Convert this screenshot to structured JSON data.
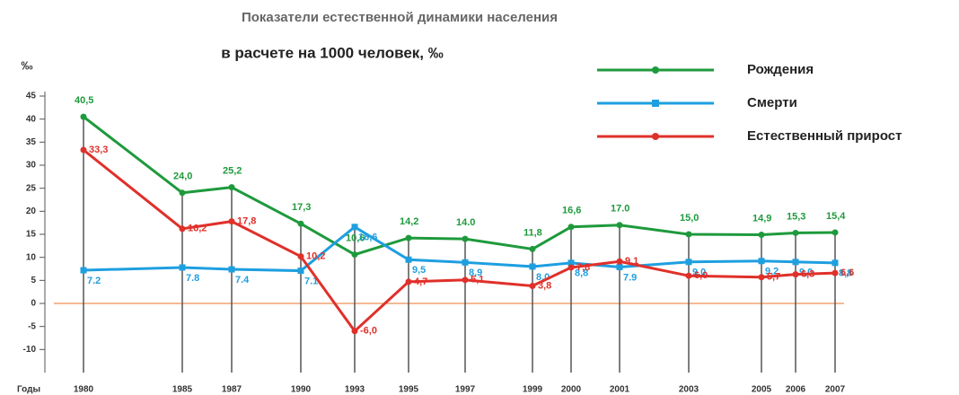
{
  "chart_data": {
    "type": "line",
    "title": "Показатели естественной динамики населения",
    "subtitle": "в расчете на 1000 человек, ‰",
    "y_label": "‰",
    "x_label": "Годы",
    "categories": [
      "1980",
      "1985",
      "1987",
      "1990",
      "1993",
      "1995",
      "1997",
      "1999",
      "2000",
      "2001",
      "2003",
      "2005",
      "2006",
      "2007"
    ],
    "series": [
      {
        "name": "Рождения",
        "color": "#1e9a3c",
        "values": [
          40.5,
          24.0,
          25.2,
          17.3,
          10.6,
          14.2,
          14.0,
          11.8,
          16.6,
          17.0,
          15.0,
          14.9,
          15.3,
          15.4
        ],
        "value_labels": [
          "40,5",
          "24,0",
          "25,2",
          "17,3",
          "10,6",
          "14,2",
          "14.0",
          "11,8",
          "16,6",
          "17.0",
          "15,0",
          "14,9",
          "15,3",
          "15,4"
        ]
      },
      {
        "name": "Смерти",
        "color": "#1e9fe0",
        "values": [
          7.2,
          7.8,
          7.4,
          7.1,
          16.6,
          9.5,
          8.9,
          8.0,
          8.8,
          7.9,
          9.0,
          9.2,
          9.0,
          8.8
        ],
        "value_labels": [
          "7.2",
          "7.8",
          "7.4",
          "7.1",
          "16,6",
          "9,5",
          "8,9",
          "8,0",
          "8,8",
          "7.9",
          "9,0",
          "9,2",
          "9,0",
          "8,8"
        ]
      },
      {
        "name": "Естественный прирост",
        "color": "#e0302a",
        "values": [
          33.3,
          16.2,
          17.8,
          10.2,
          -6.0,
          4.7,
          5.1,
          3.8,
          7.8,
          9.1,
          6.0,
          5.7,
          6.3,
          6.6
        ],
        "value_labels": [
          "33,3",
          "16,2",
          "17,8",
          "10,2",
          "-6,0",
          "4,7",
          "5,1",
          "3,8",
          "7,8",
          "9,1",
          "6,0",
          "5,7",
          "6,3",
          "6,6"
        ]
      }
    ],
    "ylim": [
      -15,
      45
    ],
    "yticks": [
      -10,
      -5,
      0,
      5,
      10,
      15,
      20,
      25,
      30,
      35,
      40,
      45
    ]
  }
}
